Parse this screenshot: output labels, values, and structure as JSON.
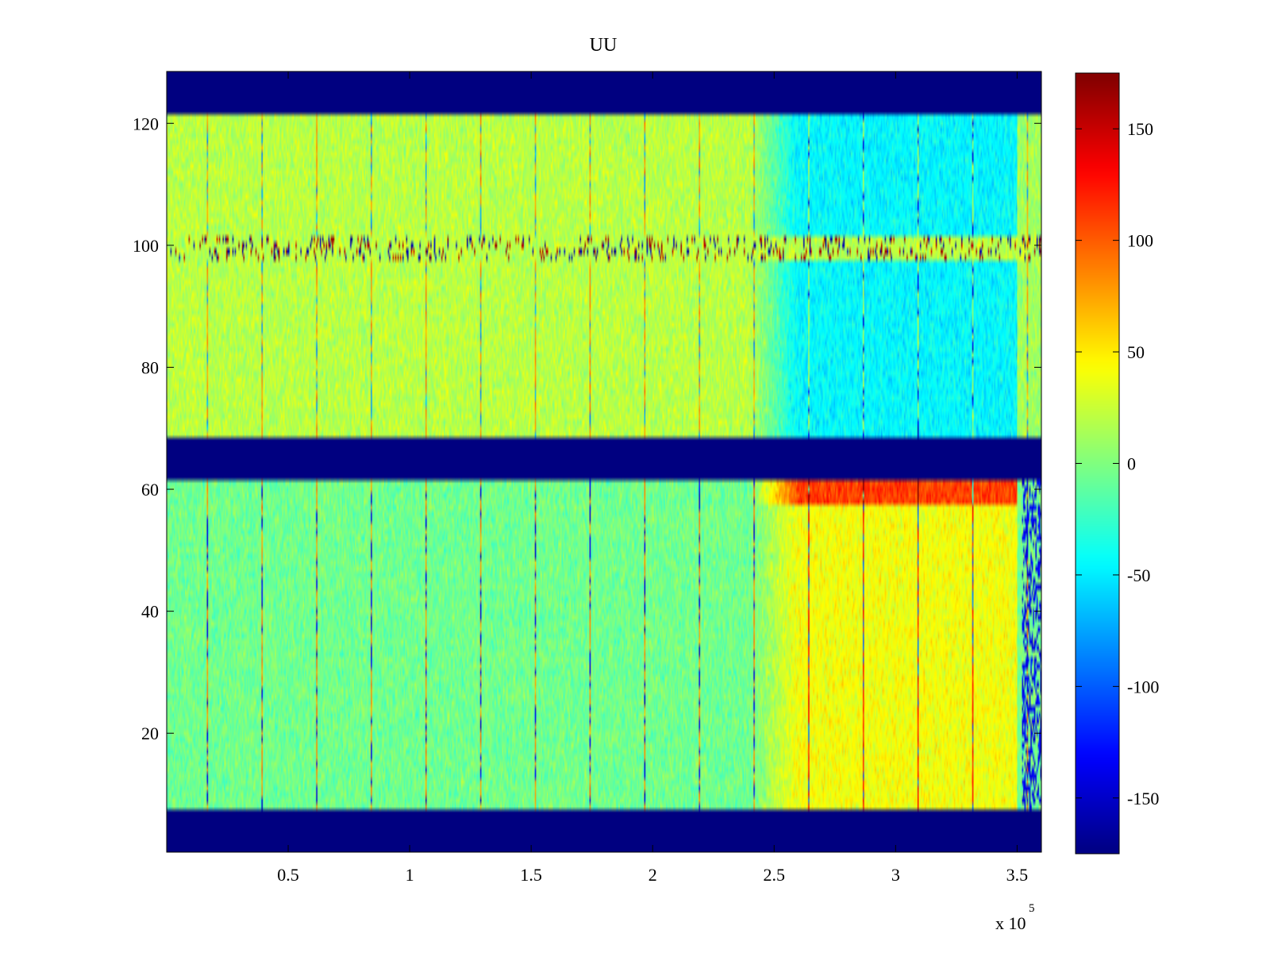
{
  "chart_data": {
    "type": "heatmap",
    "title": "UU",
    "xlabel": "",
    "ylabel": "",
    "x_range": [
      0,
      360000
    ],
    "y_range": [
      1,
      128
    ],
    "x_ticks": [
      50000,
      100000,
      150000,
      200000,
      250000,
      300000,
      350000
    ],
    "x_tick_labels": [
      "0.5",
      "1",
      "1.5",
      "2",
      "2.5",
      "3",
      "3.5"
    ],
    "x_exponent_label": "x 10",
    "x_exponent_power": "5",
    "y_ticks": [
      20,
      40,
      60,
      80,
      100,
      120
    ],
    "y_tick_labels": [
      "20",
      "40",
      "60",
      "80",
      "100",
      "120"
    ],
    "colormap": "jet",
    "clim": [
      -175,
      175
    ],
    "colorbar": {
      "placement": "right",
      "ticks": [
        150,
        100,
        50,
        0,
        -50,
        -100,
        -150
      ],
      "tick_labels": [
        "150",
        "100",
        "50",
        "0",
        "-50",
        "-100",
        "-150"
      ]
    },
    "missing_value_rows": [
      [
        1,
        7
      ],
      [
        62,
        68
      ],
      [
        122,
        128
      ]
    ],
    "regions": [
      {
        "rows": [
          8,
          61
        ],
        "x_from": 0,
        "x_to": 240000,
        "typical_value": -5
      },
      {
        "rows": [
          8,
          61
        ],
        "x_from": 260000,
        "x_to": 350000,
        "typical_value": 40
      },
      {
        "rows": [
          58,
          61
        ],
        "x_from": 280000,
        "x_to": 350000,
        "typical_value": 110
      },
      {
        "rows": [
          69,
          121
        ],
        "x_from": 0,
        "x_to": 240000,
        "typical_value": 20
      },
      {
        "rows": [
          69,
          121
        ],
        "x_from": 260000,
        "x_to": 350000,
        "typical_value": -45
      },
      {
        "rows": [
          98,
          101
        ],
        "x_from": 0,
        "x_to": 360000,
        "typical_value": "mixed extremes"
      }
    ]
  }
}
